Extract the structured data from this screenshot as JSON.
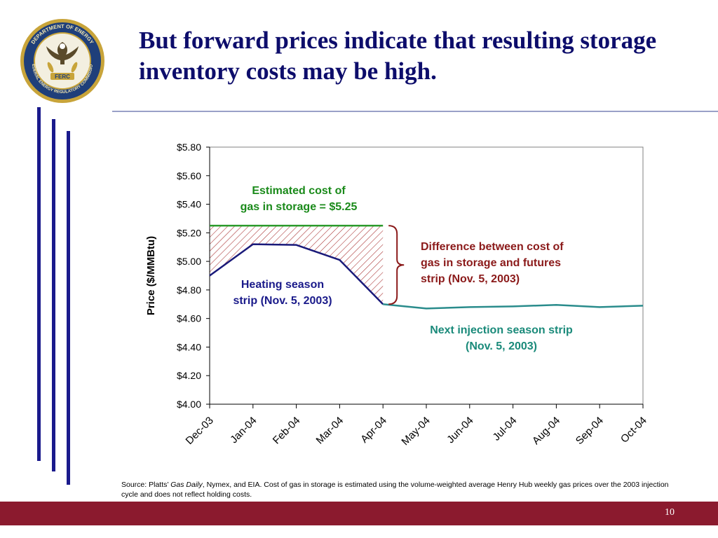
{
  "header": {
    "title": "But forward prices indicate that resulting storage inventory costs may be high."
  },
  "logo": {
    "outer_text": "DEPARTMENT OF ENERGY",
    "inner_text": "FEDERAL ENERGY REGULATORY COMMISSION",
    "badge_text": "FERC"
  },
  "chart_data": {
    "type": "line",
    "x": [
      "Dec-03",
      "Jan-04",
      "Feb-04",
      "Mar-04",
      "Apr-04",
      "May-04",
      "Jun-04",
      "Jul-04",
      "Aug-04",
      "Sep-04",
      "Oct-04"
    ],
    "ylabel": "Price ($/MMBtu)",
    "ylim": [
      4.0,
      5.8
    ],
    "yticks": [
      "$4.00",
      "$4.20",
      "$4.40",
      "$4.60",
      "$4.80",
      "$5.00",
      "$5.20",
      "$5.40",
      "$5.60",
      "$5.80"
    ],
    "series": [
      {
        "values": [
          4.9,
          5.12,
          5.115,
          5.01,
          4.7,
          null,
          null,
          null,
          null,
          null,
          null
        ],
        "color": "#1a1a7a"
      },
      {
        "values": [
          null,
          null,
          null,
          null,
          4.7,
          4.67,
          4.68,
          4.685,
          4.695,
          4.68,
          4.69
        ],
        "color": "#2a8c8c"
      },
      {
        "values": [
          5.25,
          5.25,
          5.25,
          5.25,
          5.25,
          null,
          null,
          null,
          null,
          null,
          null
        ],
        "color": "#2a9a2a"
      }
    ],
    "annotations": {
      "storage_cost": "Estimated cost of\ngas in storage = $5.25",
      "difference": "Difference between cost of\ngas in storage and futures\nstrip (Nov. 5, 2003)",
      "heating": "Heating season\nstrip (Nov. 5, 2003)",
      "injection": "Next injection season strip\n(Nov. 5, 2003)"
    },
    "annotation_colors": {
      "storage_cost": "#1a8a1a",
      "difference": "#8b1a1a",
      "heating": "#1a1a8a",
      "injection": "#1a8a7a"
    },
    "grid": false,
    "legend": "none"
  },
  "source_note": {
    "prefix": "Source: Platts’ ",
    "italic": "Gas Daily",
    "suffix": ", Nymex, and EIA. Cost of gas in storage is estimated using the volume-weighted average Henry Hub weekly gas prices over the 2003 injection cycle and does not reflect holding costs."
  },
  "footer": {
    "page_number": "10"
  }
}
